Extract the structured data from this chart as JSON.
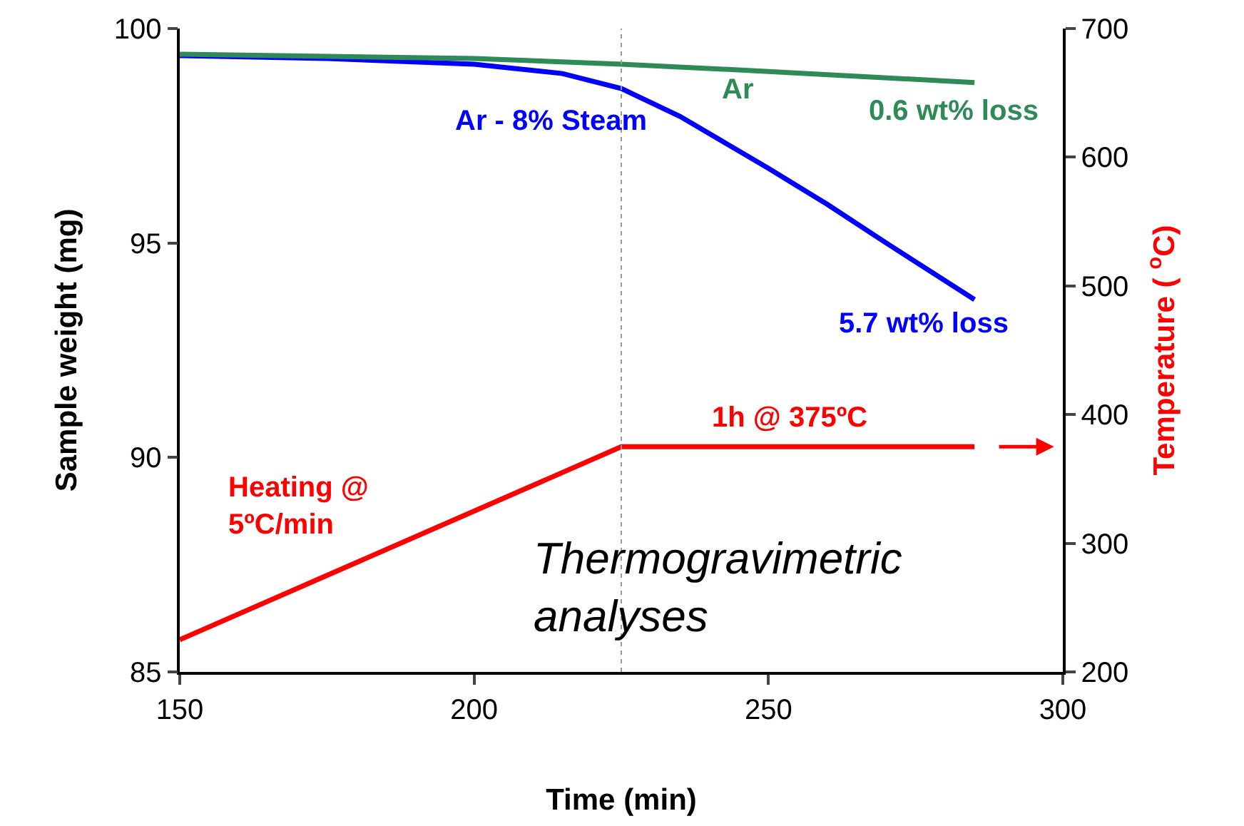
{
  "chart_data": {
    "type": "line",
    "xlabel": "Time (min)",
    "ylabel": "Sample weight (mg)",
    "y2label": "Temperature ( $^{o}$C)",
    "xlim": [
      150,
      300
    ],
    "xticks": [
      150,
      200,
      250,
      300
    ],
    "ylim": [
      85,
      100
    ],
    "yticks": [
      85,
      90,
      95,
      100
    ],
    "y2lim": [
      200,
      700
    ],
    "y2ticks": [
      200,
      300,
      400,
      500,
      600,
      700
    ],
    "grid": false,
    "legend": false,
    "marker": "none",
    "line_style": "solid",
    "series": [
      {
        "name": "Ar - 8% Steam",
        "color": "#0000ff",
        "x": [
          150,
          175,
          200,
          215,
          225,
          235,
          250,
          260,
          270,
          285
        ],
        "values": [
          99.37,
          99.3,
          99.17,
          98.95,
          98.6,
          97.95,
          96.74,
          95.9,
          95.0,
          93.68
        ]
      },
      {
        "name": "Ar",
        "color": "#2e8b57",
        "x": [
          150,
          200,
          225,
          250,
          285
        ],
        "values": [
          99.4,
          99.3,
          99.17,
          99.0,
          98.74
        ]
      },
      {
        "color": "#ff0000",
        "axis": "y2",
        "x": [
          150,
          225,
          285
        ],
        "values": [
          225,
          375,
          375
        ]
      }
    ],
    "ref_lines": [
      {
        "axis": "x",
        "value": 225,
        "color": "#999999",
        "line_style": "dotted"
      }
    ],
    "annotations": [
      "0.6 wt% loss",
      "5.7 wt% loss",
      "1h @ 375ºC",
      "Heating @\n5ºC/min",
      "Thermogravimetric\nanalyses"
    ]
  }
}
